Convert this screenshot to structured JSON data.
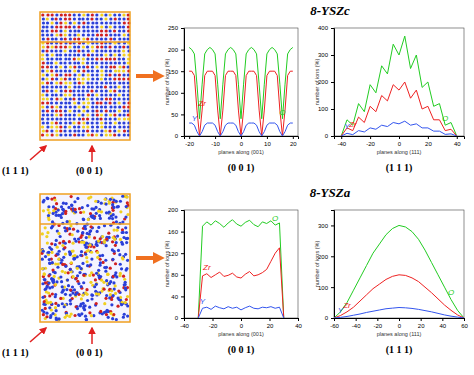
{
  "figure": {
    "rows": [
      {
        "title": "8-YSZc",
        "labels": [
          "(1 1 1)",
          "(0 0 1)"
        ]
      },
      {
        "title": "8-YSZa",
        "labels": [
          "(1 1 1)",
          "(0 0 1)"
        ]
      }
    ]
  },
  "chart_data": [
    {
      "type": "line",
      "title": "(0 0 1)",
      "x_label": "planes along (001)",
      "y_label": "number of ions (%)",
      "x": [
        -20,
        -19,
        -18,
        -17,
        -16,
        -15,
        -14,
        -13,
        -12,
        -11,
        -10,
        -9,
        -8,
        -7,
        -6,
        -5,
        -4,
        -3,
        -2,
        -1,
        0,
        1,
        2,
        3,
        4,
        5,
        6,
        7,
        8,
        9,
        10,
        11,
        12,
        13,
        14,
        15,
        16,
        17,
        18,
        19,
        20
      ],
      "series": [
        {
          "name": "O",
          "color": "#22cc22",
          "values": [
            205,
            200,
            190,
            120,
            40,
            120,
            190,
            200,
            205,
            200,
            190,
            120,
            40,
            120,
            190,
            200,
            205,
            200,
            190,
            120,
            40,
            120,
            190,
            200,
            205,
            200,
            190,
            120,
            40,
            120,
            190,
            200,
            205,
            200,
            190,
            120,
            40,
            120,
            190,
            200,
            205
          ]
        },
        {
          "name": "Zr",
          "color": "#ee2222",
          "values": [
            150,
            150,
            140,
            60,
            0,
            60,
            140,
            150,
            150,
            150,
            140,
            60,
            0,
            60,
            140,
            150,
            150,
            150,
            140,
            60,
            0,
            60,
            140,
            150,
            150,
            150,
            140,
            60,
            0,
            60,
            140,
            150,
            150,
            150,
            140,
            60,
            0,
            60,
            140,
            150,
            150
          ]
        },
        {
          "name": "Y",
          "color": "#3355ee",
          "values": [
            30,
            30,
            25,
            10,
            0,
            10,
            25,
            30,
            30,
            30,
            25,
            10,
            0,
            10,
            25,
            30,
            30,
            30,
            25,
            10,
            0,
            10,
            25,
            30,
            30,
            30,
            25,
            10,
            0,
            10,
            25,
            30,
            30,
            30,
            25,
            10,
            0,
            10,
            25,
            30,
            30
          ]
        }
      ],
      "xlim": [
        -22,
        22
      ],
      "xticks": [
        -20,
        -10,
        0,
        10,
        20
      ],
      "ylim": [
        0,
        250
      ],
      "yticks": [
        0,
        50,
        100,
        150,
        200,
        250
      ]
    },
    {
      "type": "line",
      "title": "(1 1 1)",
      "x_label": "planes along (111)",
      "y_label": "number of ions (%)",
      "x": [
        -40,
        -36,
        -32,
        -28,
        -24,
        -20,
        -16,
        -12,
        -8,
        -4,
        0,
        4,
        8,
        12,
        16,
        20,
        24,
        28,
        32,
        36,
        40
      ],
      "series": [
        {
          "name": "O",
          "color": "#22cc22",
          "values": [
            0,
            60,
            40,
            120,
            90,
            190,
            160,
            260,
            230,
            340,
            300,
            370,
            250,
            300,
            180,
            200,
            110,
            120,
            40,
            50,
            0
          ]
        },
        {
          "name": "Zr",
          "color": "#ee2222",
          "values": [
            0,
            30,
            20,
            70,
            50,
            110,
            90,
            150,
            130,
            190,
            170,
            200,
            140,
            170,
            100,
            110,
            60,
            60,
            20,
            25,
            0
          ]
        },
        {
          "name": "Y",
          "color": "#3355ee",
          "values": [
            0,
            10,
            5,
            20,
            15,
            30,
            25,
            40,
            35,
            50,
            45,
            55,
            40,
            45,
            30,
            30,
            18,
            18,
            6,
            8,
            0
          ]
        }
      ],
      "xlim": [
        -45,
        45
      ],
      "xticks": [
        -40,
        -20,
        0,
        20,
        40
      ],
      "ylim": [
        0,
        400
      ],
      "yticks": [
        0,
        100,
        200,
        300,
        400
      ]
    },
    {
      "type": "line",
      "title": "(0 0 1)",
      "x_label": "planes along (001)",
      "y_label": "number of ions (%)",
      "x": [
        -30,
        -27,
        -24,
        -21,
        -18,
        -15,
        -12,
        -9,
        -6,
        -3,
        0,
        3,
        6,
        9,
        12,
        15,
        18,
        21,
        24,
        27,
        30
      ],
      "series": [
        {
          "name": "O",
          "color": "#22cc22",
          "values": [
            0,
            170,
            178,
            172,
            180,
            175,
            168,
            176,
            182,
            174,
            170,
            177,
            181,
            173,
            169,
            178,
            175,
            180,
            172,
            176,
            0
          ]
        },
        {
          "name": "Zr",
          "color": "#ee2222",
          "values": [
            0,
            78,
            82,
            75,
            80,
            85,
            77,
            79,
            83,
            76,
            74,
            81,
            86,
            78,
            80,
            84,
            90,
            105,
            120,
            130,
            0
          ]
        },
        {
          "name": "Y",
          "color": "#3355ee",
          "values": [
            0,
            18,
            20,
            16,
            22,
            19,
            17,
            21,
            18,
            20,
            15,
            19,
            22,
            18,
            17,
            20,
            19,
            21,
            18,
            20,
            0
          ]
        }
      ],
      "xlim": [
        -40,
        40
      ],
      "xticks": [
        -40,
        -20,
        0,
        20,
        40
      ],
      "ylim": [
        0,
        200
      ],
      "yticks": [
        0,
        40,
        80,
        120,
        160,
        200
      ]
    },
    {
      "type": "line",
      "title": "(1 1 1)",
      "x_label": "planes along (111)",
      "y_label": "number of ions (%)",
      "x": [
        -60,
        -54,
        -48,
        -42,
        -36,
        -30,
        -24,
        -18,
        -12,
        -6,
        0,
        6,
        12,
        18,
        24,
        30,
        36,
        42,
        48,
        54,
        60
      ],
      "series": [
        {
          "name": "O",
          "color": "#22cc22",
          "values": [
            0,
            20,
            50,
            90,
            130,
            170,
            210,
            240,
            270,
            290,
            300,
            295,
            280,
            255,
            220,
            180,
            140,
            100,
            60,
            25,
            0
          ]
        },
        {
          "name": "Zr",
          "color": "#ee2222",
          "values": [
            0,
            8,
            20,
            35,
            55,
            75,
            95,
            110,
            125,
            135,
            140,
            138,
            130,
            118,
            100,
            82,
            62,
            42,
            25,
            10,
            0
          ]
        },
        {
          "name": "Y",
          "color": "#3355ee",
          "values": [
            0,
            2,
            5,
            9,
            13,
            18,
            22,
            26,
            30,
            32,
            34,
            33,
            31,
            28,
            24,
            20,
            15,
            10,
            6,
            3,
            0
          ]
        }
      ],
      "xlim": [
        -60,
        60
      ],
      "xticks": [
        -60,
        -40,
        -20,
        0,
        20,
        40,
        60
      ],
      "ylim": [
        0,
        350
      ],
      "yticks": [
        0,
        100,
        200,
        300
      ]
    }
  ]
}
